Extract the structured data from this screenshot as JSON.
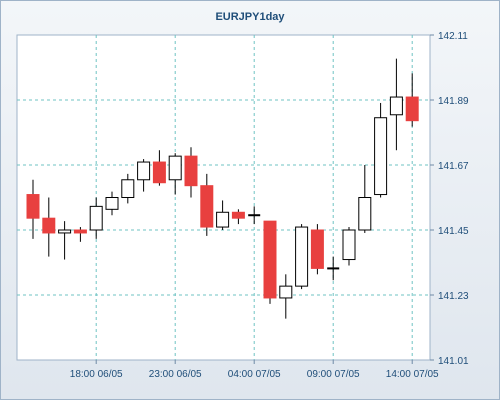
{
  "chart_data": {
    "type": "candlestick",
    "title": "EURJPY1day",
    "colors": {
      "bullish": "#ffffff",
      "bearish": "#e8403f",
      "outline": "#000000",
      "grid": "#6fc3c3",
      "axis_text": "#1f4e79",
      "plot_background": "#ffffff"
    },
    "grid": true,
    "ylim": [
      141.01,
      142.11
    ],
    "y_ticks": [
      "141.01",
      "141.23",
      "141.45",
      "141.67",
      "141.89",
      "142.11"
    ],
    "x_ticks": [
      {
        "index": 4,
        "label": "18:00 06/05"
      },
      {
        "index": 9,
        "label": "23:00 06/05"
      },
      {
        "index": 14,
        "label": "04:00 07/05"
      },
      {
        "index": 19,
        "label": "09:00 07/05"
      },
      {
        "index": 24,
        "label": "14:00 07/05"
      }
    ],
    "candles": [
      {
        "open": 141.57,
        "high": 141.62,
        "low": 141.42,
        "close": 141.49
      },
      {
        "open": 141.49,
        "high": 141.56,
        "low": 141.36,
        "close": 141.44
      },
      {
        "open": 141.44,
        "high": 141.48,
        "low": 141.35,
        "close": 141.45
      },
      {
        "open": 141.45,
        "high": 141.46,
        "low": 141.41,
        "close": 141.44
      },
      {
        "open": 141.45,
        "high": 141.56,
        "low": 141.42,
        "close": 141.53
      },
      {
        "open": 141.52,
        "high": 141.58,
        "low": 141.5,
        "close": 141.56
      },
      {
        "open": 141.56,
        "high": 141.64,
        "low": 141.54,
        "close": 141.62
      },
      {
        "open": 141.62,
        "high": 141.69,
        "low": 141.58,
        "close": 141.68
      },
      {
        "open": 141.68,
        "high": 141.72,
        "low": 141.6,
        "close": 141.61
      },
      {
        "open": 141.62,
        "high": 141.71,
        "low": 141.57,
        "close": 141.7
      },
      {
        "open": 141.7,
        "high": 141.73,
        "low": 141.56,
        "close": 141.6
      },
      {
        "open": 141.6,
        "high": 141.64,
        "low": 141.43,
        "close": 141.46
      },
      {
        "open": 141.46,
        "high": 141.55,
        "low": 141.45,
        "close": 141.51
      },
      {
        "open": 141.51,
        "high": 141.52,
        "low": 141.47,
        "close": 141.49
      },
      {
        "open": 141.5,
        "high": 141.53,
        "low": 141.47,
        "close": 141.5
      },
      {
        "open": 141.48,
        "high": 141.48,
        "low": 141.2,
        "close": 141.22
      },
      {
        "open": 141.22,
        "high": 141.3,
        "low": 141.15,
        "close": 141.26
      },
      {
        "open": 141.26,
        "high": 141.47,
        "low": 141.25,
        "close": 141.46
      },
      {
        "open": 141.45,
        "high": 141.47,
        "low": 141.3,
        "close": 141.32
      },
      {
        "open": 141.32,
        "high": 141.36,
        "low": 141.28,
        "close": 141.32
      },
      {
        "open": 141.35,
        "high": 141.46,
        "low": 141.33,
        "close": 141.45
      },
      {
        "open": 141.45,
        "high": 141.67,
        "low": 141.44,
        "close": 141.56
      },
      {
        "open": 141.57,
        "high": 141.88,
        "low": 141.56,
        "close": 141.83
      },
      {
        "open": 141.84,
        "high": 142.03,
        "low": 141.72,
        "close": 141.9
      },
      {
        "open": 141.9,
        "high": 141.98,
        "low": 141.8,
        "close": 141.82
      }
    ]
  }
}
